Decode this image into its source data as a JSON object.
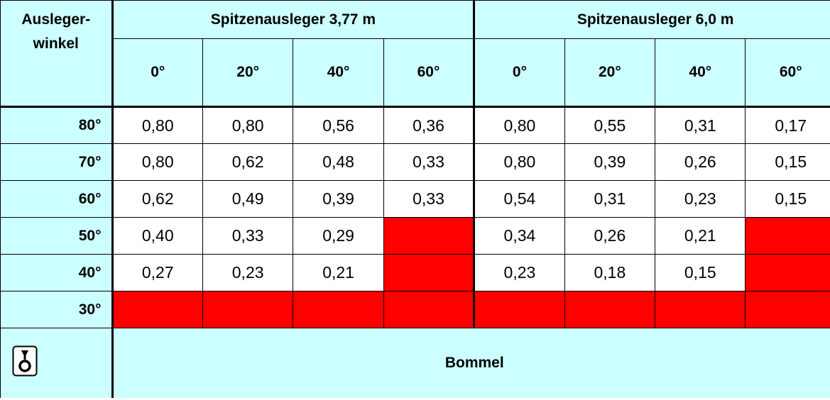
{
  "table": {
    "corner": [
      "Ausleger-",
      "winkel"
    ],
    "groups": [
      {
        "title": "Spitzenausleger 3,77 m",
        "columns": [
          "0°",
          "20°",
          "40°",
          "60°"
        ]
      },
      {
        "title": "Spitzenausleger 6,0 m",
        "columns": [
          "0°",
          "20°",
          "40°",
          "60°"
        ]
      }
    ],
    "rows": [
      {
        "label": "80°",
        "cells": [
          "0,80",
          "0,80",
          "0,56",
          "0,36",
          "0,80",
          "0,55",
          "0,31",
          "0,17"
        ]
      },
      {
        "label": "70°",
        "cells": [
          "0,80",
          "0,62",
          "0,48",
          "0,33",
          "0,80",
          "0,39",
          "0,26",
          "0,15"
        ]
      },
      {
        "label": "60°",
        "cells": [
          "0,62",
          "0,49",
          "0,39",
          "0,33",
          "0,54",
          "0,31",
          "0,23",
          "0,15"
        ]
      },
      {
        "label": "50°",
        "cells": [
          "0,40",
          "0,33",
          "0,29",
          null,
          "0,34",
          "0,26",
          "0,21",
          null
        ]
      },
      {
        "label": "40°",
        "cells": [
          "0,27",
          "0,23",
          "0,21",
          null,
          "0,23",
          "0,18",
          "0,15",
          null
        ]
      },
      {
        "label": "30°",
        "cells": [
          null,
          null,
          null,
          null,
          null,
          null,
          null,
          null
        ]
      }
    ],
    "footer": "Bommel"
  }
}
